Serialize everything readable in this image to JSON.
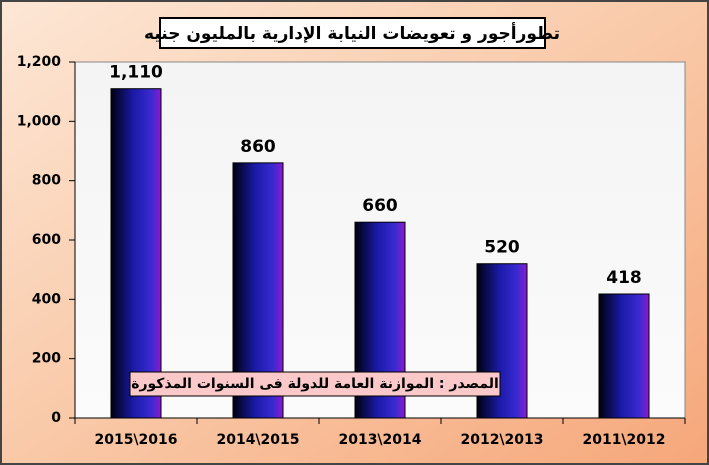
{
  "chart_data": {
    "type": "bar",
    "title": "تطورأجور و تعويضات النيابة الإدارية بالمليون جنيه",
    "annotation": "المصدر : الموازنة العامة للدولة فى السنوات المذكورة",
    "categories": [
      "2015\\2016",
      "2014\\2015",
      "2013\\2014",
      "2012\\2013",
      "2011\\2012"
    ],
    "values": [
      1110,
      860,
      660,
      520,
      418
    ],
    "value_labels": [
      "1,110",
      "860",
      "660",
      "520",
      "418"
    ],
    "color": "#1a1aa8",
    "ylim": [
      0,
      1200
    ],
    "yticks": [
      0,
      200,
      400,
      600,
      800,
      {
        "value": 1000,
        "label": "1,000"
      },
      {
        "value": 1200,
        "label": "1,200"
      }
    ],
    "grid": false
  }
}
